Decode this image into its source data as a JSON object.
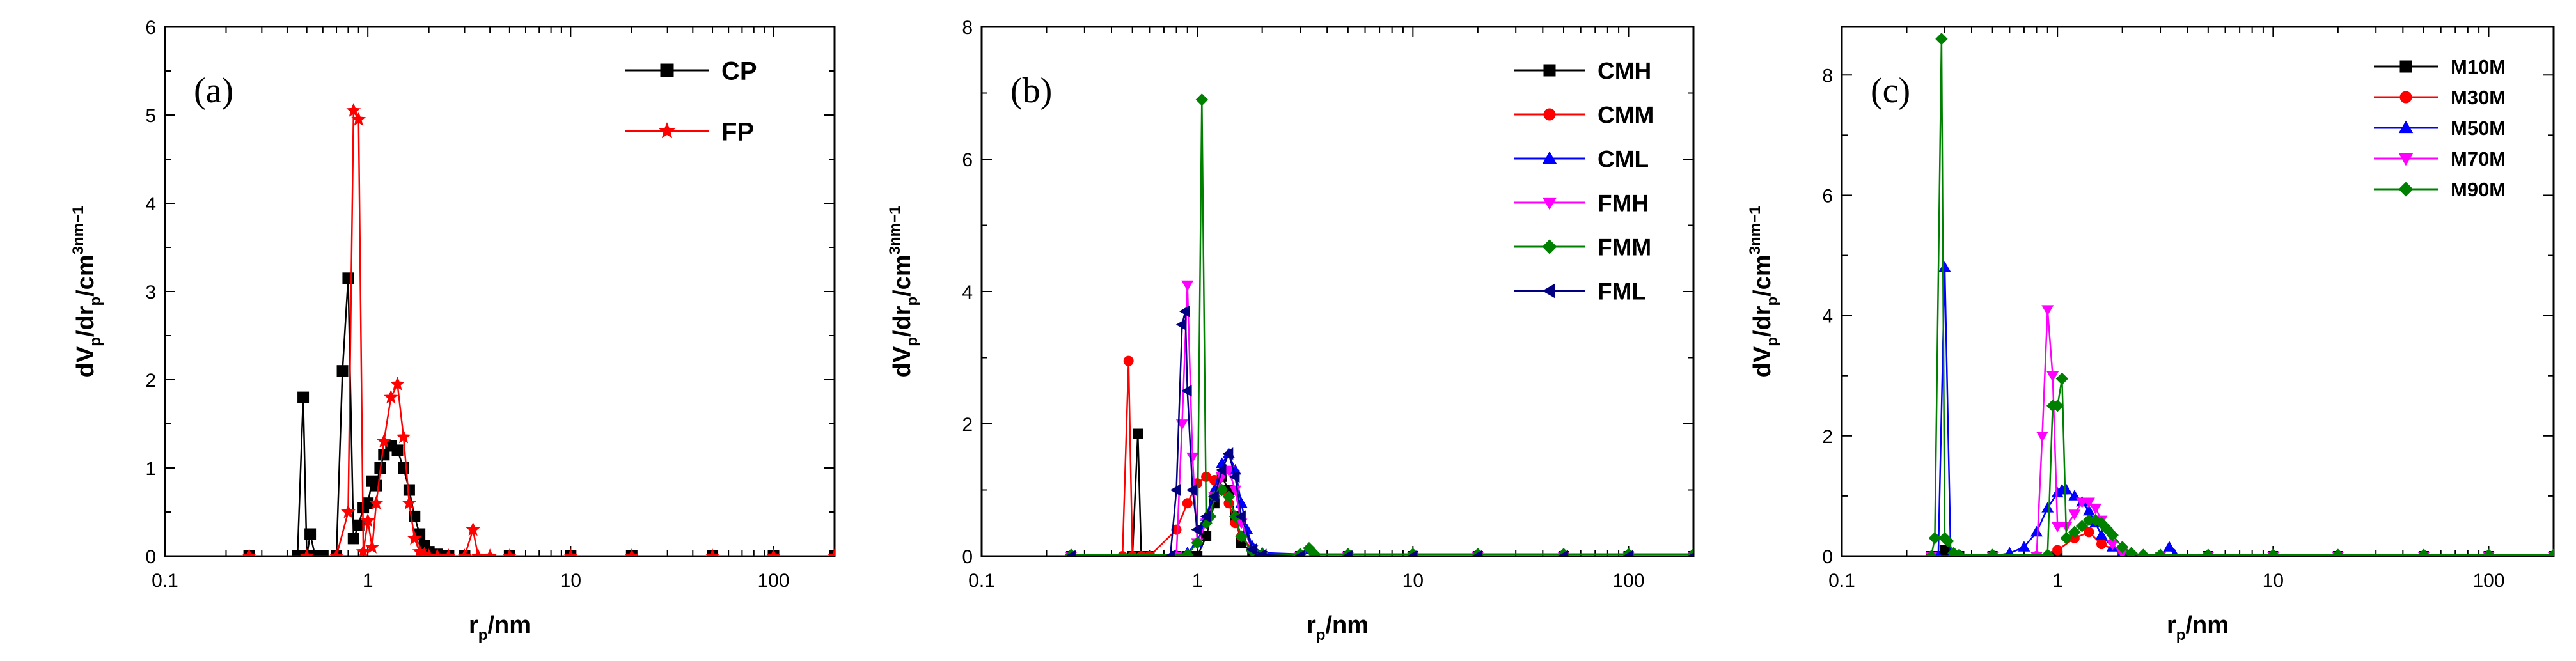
{
  "chart_data": [
    {
      "panel_label": "(a)",
      "type": "line",
      "xscale": "log",
      "xlim": [
        0.1,
        200
      ],
      "ylim": [
        0,
        6
      ],
      "xticks": [
        0.1,
        1,
        10,
        100
      ],
      "xtick_labels": [
        "0.1",
        "1",
        "10",
        "100"
      ],
      "yticks": [
        0,
        1,
        2,
        3,
        4,
        5,
        6
      ],
      "ytick_labels": [
        "0",
        "1",
        "2",
        "3",
        "4",
        "5",
        "6"
      ],
      "xlabel": "r_p/nm",
      "ylabel": "dV_p/dr_p/cm^3nm^-1",
      "grid": false,
      "legend": "top-right",
      "series": [
        {
          "name": "CP",
          "color": "#000000",
          "marker": "square",
          "x": [
            0.26,
            0.45,
            0.48,
            0.5,
            0.52,
            0.55,
            0.6,
            0.7,
            0.75,
            0.8,
            0.85,
            0.9,
            0.95,
            1.0,
            1.05,
            1.1,
            1.15,
            1.2,
            1.3,
            1.4,
            1.5,
            1.6,
            1.7,
            1.8,
            1.9,
            2.0,
            2.2,
            2.5,
            3,
            5,
            10,
            20,
            50,
            100,
            200
          ],
          "y": [
            0,
            0,
            1.8,
            0,
            0.25,
            0,
            0,
            0,
            2.1,
            3.15,
            0.2,
            0.35,
            0.55,
            0.6,
            0.85,
            0.8,
            1.0,
            1.15,
            1.25,
            1.2,
            1.0,
            0.75,
            0.45,
            0.25,
            0.12,
            0.05,
            0.02,
            0,
            0,
            0,
            0,
            0,
            0,
            0,
            0
          ]
        },
        {
          "name": "FP",
          "color": "#ff0000",
          "marker": "star",
          "x": [
            0.26,
            0.5,
            0.7,
            0.8,
            0.85,
            0.9,
            0.95,
            1.0,
            1.05,
            1.1,
            1.2,
            1.3,
            1.4,
            1.5,
            1.6,
            1.7,
            1.8,
            1.9,
            2.0,
            2.2,
            2.5,
            3.0,
            3.3,
            3.5,
            4,
            5,
            10,
            20,
            50,
            100,
            200
          ],
          "y": [
            0,
            0,
            0,
            0.5,
            5.05,
            4.95,
            0.05,
            0.4,
            0.1,
            0.6,
            1.3,
            1.8,
            1.95,
            1.35,
            0.6,
            0.2,
            0.05,
            0.02,
            0,
            0,
            0,
            0,
            0.3,
            0,
            0,
            0,
            0,
            0,
            0,
            0,
            0
          ]
        }
      ]
    },
    {
      "panel_label": "(b)",
      "type": "line",
      "xscale": "log",
      "xlim": [
        0.1,
        200
      ],
      "ylim": [
        0,
        8
      ],
      "xticks": [
        0.1,
        1,
        10,
        100
      ],
      "xtick_labels": [
        "0.1",
        "1",
        "10",
        "100"
      ],
      "yticks": [
        0,
        2,
        4,
        6,
        8
      ],
      "ytick_labels": [
        "0",
        "2",
        "4",
        "6",
        "8"
      ],
      "xlabel": "r_p/nm",
      "ylabel": "dV_p/dr_p/cm^3nm^-1",
      "grid": false,
      "legend": "top-right",
      "series": [
        {
          "name": "CMH",
          "color": "#000000",
          "marker": "square",
          "x": [
            0.26,
            0.5,
            0.53,
            0.55,
            0.6,
            0.8,
            0.9,
            1.0,
            1.1,
            1.2,
            1.3,
            1.4,
            1.5,
            1.6,
            1.8,
            2.0,
            3.0,
            5,
            10,
            20,
            50,
            100,
            200
          ],
          "y": [
            0,
            0,
            1.85,
            0,
            0,
            0,
            0,
            0,
            0.3,
            0.8,
            1.2,
            1.0,
            0.6,
            0.2,
            0.05,
            0,
            0,
            0,
            0,
            0,
            0,
            0,
            0
          ]
        },
        {
          "name": "CMM",
          "color": "#ff0000",
          "marker": "circle",
          "x": [
            0.26,
            0.45,
            0.48,
            0.5,
            0.55,
            0.6,
            0.8,
            0.9,
            1.0,
            1.1,
            1.2,
            1.3,
            1.4,
            1.5,
            1.6,
            1.8,
            2.0,
            3.0,
            5,
            10,
            20,
            50,
            100,
            200
          ],
          "y": [
            0,
            0,
            2.95,
            0,
            0,
            0,
            0.4,
            0.8,
            1.1,
            1.2,
            1.15,
            1.0,
            0.8,
            0.5,
            0.3,
            0.1,
            0.02,
            0,
            0,
            0,
            0,
            0,
            0,
            0
          ]
        },
        {
          "name": "CML",
          "color": "#0000ff",
          "marker": "triangle-up",
          "x": [
            0.26,
            0.8,
            0.9,
            1.0,
            1.1,
            1.2,
            1.3,
            1.4,
            1.5,
            1.6,
            1.7,
            1.8,
            2.0,
            3.0,
            3.3,
            3.5,
            5,
            10,
            20,
            50,
            100,
            200
          ],
          "y": [
            0.02,
            0.02,
            0.05,
            0.2,
            0.6,
            1.0,
            1.4,
            1.55,
            1.3,
            0.8,
            0.4,
            0.15,
            0.05,
            0.03,
            0.1,
            0.03,
            0.03,
            0.03,
            0.03,
            0.03,
            0.03,
            0.03
          ]
        },
        {
          "name": "FMH",
          "color": "#ff00ff",
          "marker": "triangle-down",
          "x": [
            0.26,
            0.8,
            0.85,
            0.9,
            0.95,
            1.0,
            1.1,
            1.2,
            1.3,
            1.4,
            1.5,
            1.6,
            1.8,
            2.0,
            3.0,
            5,
            10,
            20,
            50,
            100,
            200
          ],
          "y": [
            0,
            0,
            2.0,
            4.1,
            1.5,
            0.2,
            0.5,
            0.9,
            1.2,
            1.3,
            1.0,
            0.5,
            0.1,
            0,
            0,
            0,
            0,
            0,
            0,
            0,
            0
          ]
        },
        {
          "name": "FMM",
          "color": "#008000",
          "marker": "diamond",
          "x": [
            0.26,
            0.9,
            1.0,
            1.05,
            1.1,
            1.15,
            1.2,
            1.3,
            1.4,
            1.5,
            1.6,
            1.8,
            2.0,
            3.0,
            3.3,
            3.5,
            5,
            10,
            20,
            50,
            100,
            200
          ],
          "y": [
            0.02,
            0.02,
            0.2,
            6.9,
            0.5,
            0.6,
            0.9,
            1.0,
            0.9,
            0.6,
            0.3,
            0.08,
            0.03,
            0.03,
            0.12,
            0.03,
            0.03,
            0.03,
            0.03,
            0.03,
            0.03,
            0.03
          ]
        },
        {
          "name": "FML",
          "color": "#000080",
          "marker": "triangle-left",
          "x": [
            0.26,
            0.75,
            0.8,
            0.85,
            0.88,
            0.9,
            0.95,
            1.0,
            1.1,
            1.2,
            1.3,
            1.4,
            1.5,
            1.6,
            1.8,
            2.0,
            3.0,
            5,
            10,
            20,
            50,
            100,
            200
          ],
          "y": [
            0,
            0,
            1.0,
            3.5,
            3.7,
            2.5,
            1.0,
            0.4,
            0.6,
            0.9,
            1.3,
            1.55,
            1.2,
            0.6,
            0.1,
            0.02,
            0,
            0,
            0,
            0,
            0,
            0,
            0
          ]
        }
      ]
    },
    {
      "panel_label": "(c)",
      "type": "line",
      "xscale": "log",
      "xlim": [
        0.1,
        200
      ],
      "ylim": [
        0,
        8.8
      ],
      "xticks": [
        0.1,
        1,
        10,
        100
      ],
      "xtick_labels": [
        "0.1",
        "1",
        "10",
        "100"
      ],
      "yticks": [
        0,
        2,
        4,
        6,
        8
      ],
      "ytick_labels": [
        "0",
        "2",
        "4",
        "6",
        "8"
      ],
      "xlabel": "r_p/nm",
      "ylabel": "dV_p/dr_p/cm^3nm^-1",
      "grid": false,
      "legend": "top-right",
      "series": [
        {
          "name": "M10M",
          "color": "#000000",
          "marker": "square",
          "x": [
            0.26,
            0.28,
            0.3,
            0.32,
            0.35,
            0.5,
            1,
            2,
            5,
            10,
            20,
            50,
            100,
            200
          ],
          "y": [
            0,
            0,
            0.1,
            0,
            0,
            0,
            0,
            0,
            0,
            0,
            0,
            0,
            0,
            0
          ]
        },
        {
          "name": "M30M",
          "color": "#ff0000",
          "marker": "circle",
          "x": [
            0.26,
            0.5,
            0.8,
            1.0,
            1.2,
            1.4,
            1.6,
            2.0,
            3,
            5,
            10,
            20,
            50,
            100,
            200
          ],
          "y": [
            0,
            0,
            0,
            0.1,
            0.3,
            0.4,
            0.2,
            0.05,
            0,
            0,
            0,
            0,
            0,
            0,
            0
          ]
        },
        {
          "name": "M50M",
          "color": "#0000ff",
          "marker": "triangle-up",
          "x": [
            0.26,
            0.28,
            0.3,
            0.32,
            0.35,
            0.5,
            0.6,
            0.7,
            0.8,
            0.9,
            1.0,
            1.05,
            1.1,
            1.2,
            1.3,
            1.4,
            1.5,
            1.6,
            1.8,
            2.0,
            2.5,
            3.0,
            3.3,
            3.5,
            5,
            10,
            20,
            50,
            100,
            200
          ],
          "y": [
            0,
            0,
            4.8,
            0,
            0,
            0,
            0.05,
            0.15,
            0.4,
            0.8,
            1.05,
            1.1,
            1.1,
            1.0,
            0.9,
            0.75,
            0.55,
            0.35,
            0.15,
            0.05,
            0.02,
            0.02,
            0.15,
            0.02,
            0.02,
            0.02,
            0.02,
            0.02,
            0.02,
            0.02
          ]
        },
        {
          "name": "M70M",
          "color": "#ff00ff",
          "marker": "triangle-down",
          "x": [
            0.26,
            0.5,
            0.8,
            0.85,
            0.9,
            0.95,
            1.0,
            1.1,
            1.2,
            1.3,
            1.4,
            1.5,
            1.6,
            1.8,
            2.0,
            3.0,
            5,
            10,
            20,
            50,
            100,
            200
          ],
          "y": [
            0,
            0,
            0,
            2.0,
            4.1,
            3.0,
            0.5,
            0.5,
            0.7,
            0.9,
            0.9,
            0.8,
            0.6,
            0.2,
            0.05,
            0,
            0,
            0,
            0,
            0,
            0,
            0
          ]
        },
        {
          "name": "M90M",
          "color": "#008000",
          "marker": "diamond",
          "x": [
            0.26,
            0.27,
            0.29,
            0.3,
            0.31,
            0.33,
            0.35,
            0.5,
            0.9,
            0.95,
            1.0,
            1.05,
            1.1,
            1.2,
            1.3,
            1.4,
            1.5,
            1.6,
            1.7,
            1.8,
            2.0,
            2.2,
            2.5,
            3.0,
            5,
            10,
            20,
            50,
            100,
            200
          ],
          "y": [
            0,
            0.3,
            8.6,
            0.3,
            0.25,
            0.05,
            0.02,
            0.02,
            0.02,
            2.5,
            2.5,
            2.95,
            0.3,
            0.4,
            0.5,
            0.6,
            0.6,
            0.55,
            0.45,
            0.35,
            0.15,
            0.05,
            0.02,
            0.02,
            0.02,
            0.02,
            0.02,
            0.02,
            0.02,
            0.02
          ]
        }
      ]
    }
  ]
}
